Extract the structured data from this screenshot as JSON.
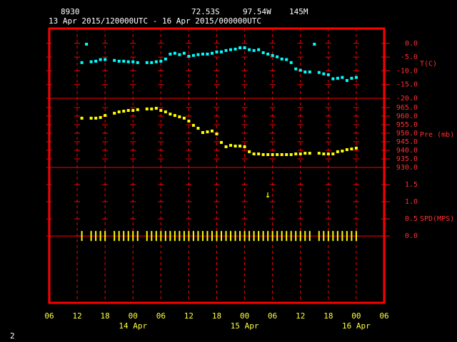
{
  "header": {
    "station": "8930",
    "latitude": "72.53S",
    "longitude": "97.54W",
    "elevation": "145M",
    "period": "13 Apr 2015/120000UTC - 16 Apr 2015/000000UTC"
  },
  "page_number": "2",
  "chart_data": [
    {
      "type": "scatter",
      "ylabel": "T(C)",
      "color": "#00ffff",
      "marker": "square",
      "ylim": [
        -20,
        5.4
      ],
      "yticks": [
        {
          "value": 0,
          "label": "0.0"
        },
        {
          "value": -5,
          "label": "-5.0"
        },
        {
          "value": -10,
          "label": "-10.0"
        },
        {
          "value": -15,
          "label": "-15.0"
        },
        {
          "value": -20,
          "label": "-20.0"
        }
      ],
      "x": [
        "2015-04-13T13:00",
        "2015-04-13T14:00",
        "2015-04-13T15:00",
        "2015-04-13T16:00",
        "2015-04-13T17:00",
        "2015-04-13T18:00",
        "2015-04-13T20:00",
        "2015-04-13T21:00",
        "2015-04-13T22:00",
        "2015-04-13T23:00",
        "2015-04-14T00:00",
        "2015-04-14T01:00",
        "2015-04-14T03:00",
        "2015-04-14T04:00",
        "2015-04-14T05:00",
        "2015-04-14T06:00",
        "2015-04-14T07:00",
        "2015-04-14T08:00",
        "2015-04-14T09:00",
        "2015-04-14T10:00",
        "2015-04-14T11:00",
        "2015-04-14T12:00",
        "2015-04-14T13:00",
        "2015-04-14T14:00",
        "2015-04-14T15:00",
        "2015-04-14T16:00",
        "2015-04-14T17:00",
        "2015-04-14T18:00",
        "2015-04-14T19:00",
        "2015-04-14T20:00",
        "2015-04-14T21:00",
        "2015-04-14T22:00",
        "2015-04-14T23:00",
        "2015-04-15T00:00",
        "2015-04-15T01:00",
        "2015-04-15T02:00",
        "2015-04-15T03:00",
        "2015-04-15T04:00",
        "2015-04-15T05:00",
        "2015-04-15T06:00",
        "2015-04-15T07:00",
        "2015-04-15T08:00",
        "2015-04-15T09:00",
        "2015-04-15T10:00",
        "2015-04-15T11:00",
        "2015-04-15T12:00",
        "2015-04-15T13:00",
        "2015-04-15T14:00",
        "2015-04-15T15:00",
        "2015-04-15T16:00",
        "2015-04-15T17:00",
        "2015-04-15T18:00",
        "2015-04-15T19:00",
        "2015-04-15T20:00",
        "2015-04-15T21:00",
        "2015-04-15T22:00",
        "2015-04-15T23:00",
        "2015-04-16T00:00"
      ],
      "values": [
        -7.0,
        -0.3,
        -6.7,
        -6.5,
        -5.9,
        -5.9,
        -6.2,
        -6.5,
        -6.5,
        -6.7,
        -6.7,
        -7.0,
        -7.0,
        -7.0,
        -6.7,
        -6.5,
        -5.7,
        -3.9,
        -3.6,
        -4.1,
        -3.6,
        -4.7,
        -4.4,
        -4.1,
        -3.9,
        -3.9,
        -3.6,
        -3.1,
        -3.1,
        -2.6,
        -2.3,
        -2.1,
        -1.6,
        -1.6,
        -2.3,
        -2.6,
        -2.3,
        -3.4,
        -3.9,
        -4.4,
        -4.9,
        -5.7,
        -5.9,
        -7.0,
        -9.3,
        -9.8,
        -10.4,
        -10.4,
        -0.3,
        -10.6,
        -11.1,
        -11.4,
        -12.9,
        -12.7,
        -12.4,
        -13.5,
        -12.7,
        -12.4
      ]
    },
    {
      "type": "scatter",
      "ylabel": "Pre (mb)",
      "color": "#ffff00",
      "marker": "square",
      "ylim": [
        930,
        970.4
      ],
      "yticks": [
        {
          "value": 965,
          "label": "965.0"
        },
        {
          "value": 960,
          "label": "960.0"
        },
        {
          "value": 955,
          "label": "955.0"
        },
        {
          "value": 950,
          "label": "950.0"
        },
        {
          "value": 945,
          "label": "945.0"
        },
        {
          "value": 940,
          "label": "940.0"
        },
        {
          "value": 935,
          "label": "935.0"
        },
        {
          "value": 930,
          "label": "930.0"
        }
      ],
      "x": [
        "2015-04-13T13:00",
        "2015-04-13T15:00",
        "2015-04-13T16:00",
        "2015-04-13T17:00",
        "2015-04-13T18:00",
        "2015-04-13T20:00",
        "2015-04-13T21:00",
        "2015-04-13T22:00",
        "2015-04-13T23:00",
        "2015-04-14T00:00",
        "2015-04-14T01:00",
        "2015-04-14T03:00",
        "2015-04-14T04:00",
        "2015-04-14T05:00",
        "2015-04-14T06:00",
        "2015-04-14T07:00",
        "2015-04-14T08:00",
        "2015-04-14T09:00",
        "2015-04-14T10:00",
        "2015-04-14T11:00",
        "2015-04-14T12:00",
        "2015-04-14T13:00",
        "2015-04-14T14:00",
        "2015-04-14T15:00",
        "2015-04-14T16:00",
        "2015-04-14T17:00",
        "2015-04-14T18:00",
        "2015-04-14T19:00",
        "2015-04-14T20:00",
        "2015-04-14T21:00",
        "2015-04-14T22:00",
        "2015-04-14T23:00",
        "2015-04-15T00:00",
        "2015-04-15T01:00",
        "2015-04-15T02:00",
        "2015-04-15T03:00",
        "2015-04-15T04:00",
        "2015-04-15T05:00",
        "2015-04-15T06:00",
        "2015-04-15T07:00",
        "2015-04-15T08:00",
        "2015-04-15T09:00",
        "2015-04-15T10:00",
        "2015-04-15T11:00",
        "2015-04-15T12:00",
        "2015-04-15T13:00",
        "2015-04-15T14:00",
        "2015-04-15T16:00",
        "2015-04-15T17:00",
        "2015-04-15T18:00",
        "2015-04-15T19:00",
        "2015-04-15T20:00",
        "2015-04-15T21:00",
        "2015-04-15T22:00",
        "2015-04-15T23:00",
        "2015-04-16T00:00"
      ],
      "values": [
        958.8,
        958.8,
        958.8,
        959.2,
        960.4,
        961.7,
        962.5,
        962.9,
        963.3,
        963.3,
        963.8,
        964.2,
        964.2,
        964.6,
        963.3,
        962.5,
        961.2,
        960.4,
        959.6,
        958.8,
        957.1,
        954.6,
        952.9,
        950.4,
        950.8,
        951.3,
        949.6,
        944.6,
        942.1,
        942.9,
        942.5,
        942.5,
        942.1,
        939.2,
        937.9,
        937.9,
        937.5,
        937.5,
        937.5,
        937.5,
        937.5,
        937.5,
        937.5,
        937.9,
        937.9,
        938.3,
        938.3,
        938.3,
        937.9,
        937.9,
        937.9,
        939.2,
        939.6,
        940.4,
        940.8,
        941.3
      ]
    },
    {
      "type": "scatter",
      "ylabel": "SPD(MPS)",
      "color": "#ffff00",
      "marker": "tick",
      "ylim": [
        -1.95,
        2.0
      ],
      "yticks": [
        1.5,
        {
          "value": 1,
          "label": "1.0"
        },
        0.5,
        {
          "value": 0,
          "label": "0.0"
        }
      ],
      "x": [
        "2015-04-13T13:00",
        "2015-04-13T15:00",
        "2015-04-13T16:00",
        "2015-04-13T17:00",
        "2015-04-13T18:00",
        "2015-04-13T20:00",
        "2015-04-13T21:00",
        "2015-04-13T22:00",
        "2015-04-13T23:00",
        "2015-04-14T00:00",
        "2015-04-14T01:00",
        "2015-04-14T03:00",
        "2015-04-14T04:00",
        "2015-04-14T05:00",
        "2015-04-14T06:00",
        "2015-04-14T07:00",
        "2015-04-14T08:00",
        "2015-04-14T09:00",
        "2015-04-14T10:00",
        "2015-04-14T11:00",
        "2015-04-14T12:00",
        "2015-04-14T13:00",
        "2015-04-14T14:00",
        "2015-04-14T15:00",
        "2015-04-14T16:00",
        "2015-04-14T17:00",
        "2015-04-14T18:00",
        "2015-04-14T19:00",
        "2015-04-14T20:00",
        "2015-04-14T21:00",
        "2015-04-14T22:00",
        "2015-04-14T23:00",
        "2015-04-15T00:00",
        "2015-04-15T01:00",
        "2015-04-15T02:00",
        "2015-04-15T03:00",
        "2015-04-15T04:00",
        "2015-04-15T05:00",
        "2015-04-15T06:00",
        "2015-04-15T07:00",
        "2015-04-15T08:00",
        "2015-04-15T09:00",
        "2015-04-15T10:00",
        "2015-04-15T11:00",
        "2015-04-15T12:00",
        "2015-04-15T13:00",
        "2015-04-15T14:00",
        "2015-04-15T16:00",
        "2015-04-15T17:00",
        "2015-04-15T18:00",
        "2015-04-15T19:00",
        "2015-04-15T20:00",
        "2015-04-15T21:00",
        "2015-04-15T22:00",
        "2015-04-15T23:00",
        "2015-04-16T00:00"
      ],
      "values": [
        0,
        0,
        0,
        0,
        0,
        0,
        0,
        0,
        0,
        0,
        0,
        0,
        0,
        0,
        0,
        0,
        0,
        0,
        0,
        0,
        0,
        0,
        0,
        0,
        0,
        0,
        0,
        0,
        0,
        0,
        0,
        0,
        0,
        0,
        0,
        0,
        0,
        0,
        0,
        0,
        0,
        0,
        0,
        0,
        0,
        0,
        0,
        0,
        0,
        0,
        0,
        0,
        0,
        0,
        0,
        0
      ],
      "annotations": [
        {
          "text": "↓",
          "x": "2015-04-15T05:00",
          "y": 1.2
        }
      ],
      "xlim": [
        "2015-04-13T06:00",
        "2015-04-16T06:00"
      ],
      "xticks": [
        {
          "value": "2015-04-13T06:00",
          "label": "06"
        },
        {
          "value": "2015-04-13T12:00",
          "label": "12"
        },
        {
          "value": "2015-04-13T18:00",
          "label": "18"
        },
        {
          "value": "2015-04-14T00:00",
          "label": "00"
        },
        {
          "value": "2015-04-14T06:00",
          "label": "06"
        },
        {
          "value": "2015-04-14T12:00",
          "label": "12"
        },
        {
          "value": "2015-04-14T18:00",
          "label": "18"
        },
        {
          "value": "2015-04-15T00:00",
          "label": "00"
        },
        {
          "value": "2015-04-15T06:00",
          "label": "06"
        },
        {
          "value": "2015-04-15T12:00",
          "label": "12"
        },
        {
          "value": "2015-04-15T18:00",
          "label": "18"
        },
        {
          "value": "2015-04-16T00:00",
          "label": "00"
        },
        {
          "value": "2015-04-16T06:00",
          "label": "06"
        }
      ],
      "date_labels": [
        {
          "value": "2015-04-14T00:00",
          "label": "14 Apr"
        },
        {
          "value": "2015-04-15T00:00",
          "label": "15 Apr"
        },
        {
          "value": "2015-04-16T00:00",
          "label": "16 Apr"
        }
      ]
    }
  ]
}
